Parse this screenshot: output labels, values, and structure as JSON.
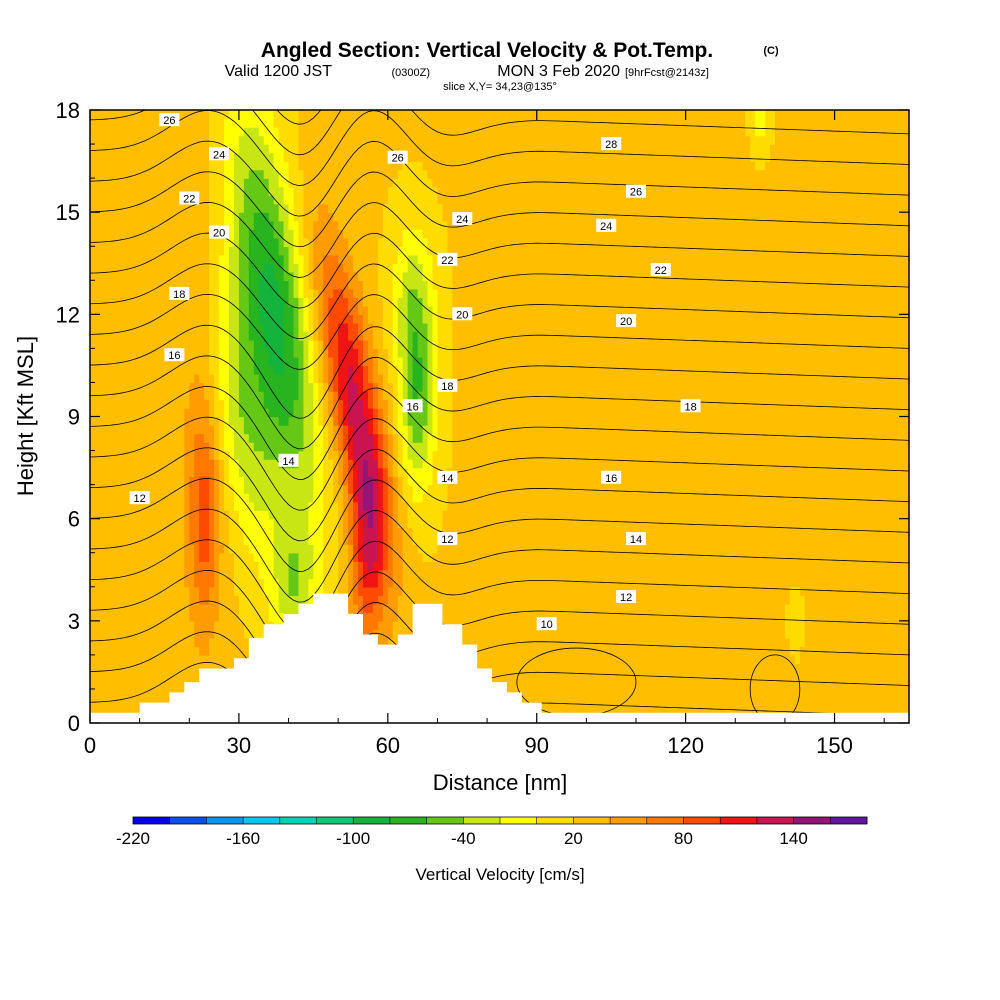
{
  "title": {
    "main": "Angled Section: Vertical Velocity & Pot.Temp.",
    "main_unit": "(C)",
    "valid_prefix": "Valid 1200 JST",
    "valid_utc": "(0300Z)",
    "valid_date": "MON 3 Feb 2020",
    "forecast": "[9hrFcst@2143z]",
    "slice": "slice X,Y= 34,23@135°"
  },
  "chart_data": {
    "type": "heatmap",
    "xlabel": "Distance [nm]",
    "ylabel": "Height [Kft MSL]",
    "xlim": [
      0,
      165
    ],
    "ylim": [
      0,
      18
    ],
    "xticks": [
      0,
      30,
      60,
      90,
      120,
      150
    ],
    "yticks": [
      0,
      3,
      6,
      9,
      12,
      15,
      18
    ],
    "colorbar": {
      "label": "Vertical Velocity [cm/s]",
      "min": -220,
      "max": 180,
      "step": 20,
      "tick_values": [
        -220,
        -160,
        -100,
        -40,
        20,
        80,
        140
      ],
      "colors": [
        "#0000ee",
        "#0a50f0",
        "#0a96f0",
        "#00c8f0",
        "#00d2b4",
        "#10c878",
        "#14b43c",
        "#28b41e",
        "#64c814",
        "#c8e614",
        "#ffff00",
        "#ffdc00",
        "#ffbe00",
        "#ff9c00",
        "#ff7800",
        "#ff4a00",
        "#f01414",
        "#c81450",
        "#961478",
        "#6414a0"
      ]
    },
    "vertical_velocity_features": [
      {
        "x": 37,
        "y": 12.0,
        "value": -70,
        "note": "downdraft"
      },
      {
        "x": 68,
        "y": 8.5,
        "value": -45,
        "note": "downdraft"
      },
      {
        "x": 53,
        "y": 9.0,
        "value": 110,
        "note": "updraft core"
      },
      {
        "x": 23,
        "y": 5.5,
        "value": 80,
        "note": "updraft"
      },
      {
        "x": 135,
        "y": 18.0,
        "value": -25,
        "note": "weak downdraft"
      }
    ],
    "pot_temp_contours": [
      {
        "value": 10,
        "x": 92,
        "y": 2.9
      },
      {
        "value": 12,
        "x": 10,
        "y": 6.6
      },
      {
        "value": 12,
        "x": 72,
        "y": 5.4
      },
      {
        "value": 12,
        "x": 108,
        "y": 3.7
      },
      {
        "value": 14,
        "x": 40,
        "y": 7.7
      },
      {
        "value": 14,
        "x": 72,
        "y": 7.2
      },
      {
        "value": 14,
        "x": 110,
        "y": 5.4
      },
      {
        "value": 16,
        "x": 17,
        "y": 10.8
      },
      {
        "value": 16,
        "x": 65,
        "y": 9.3
      },
      {
        "value": 16,
        "x": 105,
        "y": 7.2
      },
      {
        "value": 18,
        "x": 18,
        "y": 12.6
      },
      {
        "value": 18,
        "x": 72,
        "y": 9.9
      },
      {
        "value": 18,
        "x": 121,
        "y": 9.3
      },
      {
        "value": 20,
        "x": 26,
        "y": 14.4
      },
      {
        "value": 20,
        "x": 75,
        "y": 12.0
      },
      {
        "value": 20,
        "x": 108,
        "y": 11.8
      },
      {
        "value": 22,
        "x": 20,
        "y": 15.4
      },
      {
        "value": 22,
        "x": 72,
        "y": 13.6
      },
      {
        "value": 22,
        "x": 115,
        "y": 13.3
      },
      {
        "value": 24,
        "x": 26,
        "y": 16.7
      },
      {
        "value": 24,
        "x": 75,
        "y": 14.8
      },
      {
        "value": 24,
        "x": 104,
        "y": 14.6
      },
      {
        "value": 26,
        "x": 16,
        "y": 17.7
      },
      {
        "value": 26,
        "x": 62,
        "y": 16.6
      },
      {
        "value": 26,
        "x": 110,
        "y": 15.6
      }
    ],
    "legend_items": [
      {
        "value": 28,
        "x": 105,
        "y": 17.0
      }
    ],
    "terrain": [
      [
        0,
        0.3
      ],
      [
        10,
        0.3
      ],
      [
        10,
        0.6
      ],
      [
        16,
        0.6
      ],
      [
        16,
        0.9
      ],
      [
        19,
        0.9
      ],
      [
        19,
        1.2
      ],
      [
        22,
        1.2
      ],
      [
        22,
        1.6
      ],
      [
        29,
        1.6
      ],
      [
        29,
        1.9
      ],
      [
        32,
        1.9
      ],
      [
        32,
        2.5
      ],
      [
        35,
        2.5
      ],
      [
        35,
        2.9
      ],
      [
        39,
        2.9
      ],
      [
        39,
        3.2
      ],
      [
        42,
        3.2
      ],
      [
        42,
        3.5
      ],
      [
        45,
        3.5
      ],
      [
        45,
        3.8
      ],
      [
        52,
        3.8
      ],
      [
        52,
        3.2
      ],
      [
        55,
        3.2
      ],
      [
        55,
        2.6
      ],
      [
        58,
        2.6
      ],
      [
        58,
        2.3
      ],
      [
        62,
        2.3
      ],
      [
        62,
        2.6
      ],
      [
        65,
        2.6
      ],
      [
        65,
        3.5
      ],
      [
        71,
        3.5
      ],
      [
        71,
        2.9
      ],
      [
        75,
        2.9
      ],
      [
        75,
        2.3
      ],
      [
        78,
        2.3
      ],
      [
        78,
        1.6
      ],
      [
        81,
        1.6
      ],
      [
        81,
        1.2
      ],
      [
        84,
        1.2
      ],
      [
        84,
        0.9
      ],
      [
        87,
        0.9
      ],
      [
        87,
        0.6
      ],
      [
        91,
        0.6
      ],
      [
        91,
        0.3
      ],
      [
        165,
        0.3
      ]
    ]
  }
}
